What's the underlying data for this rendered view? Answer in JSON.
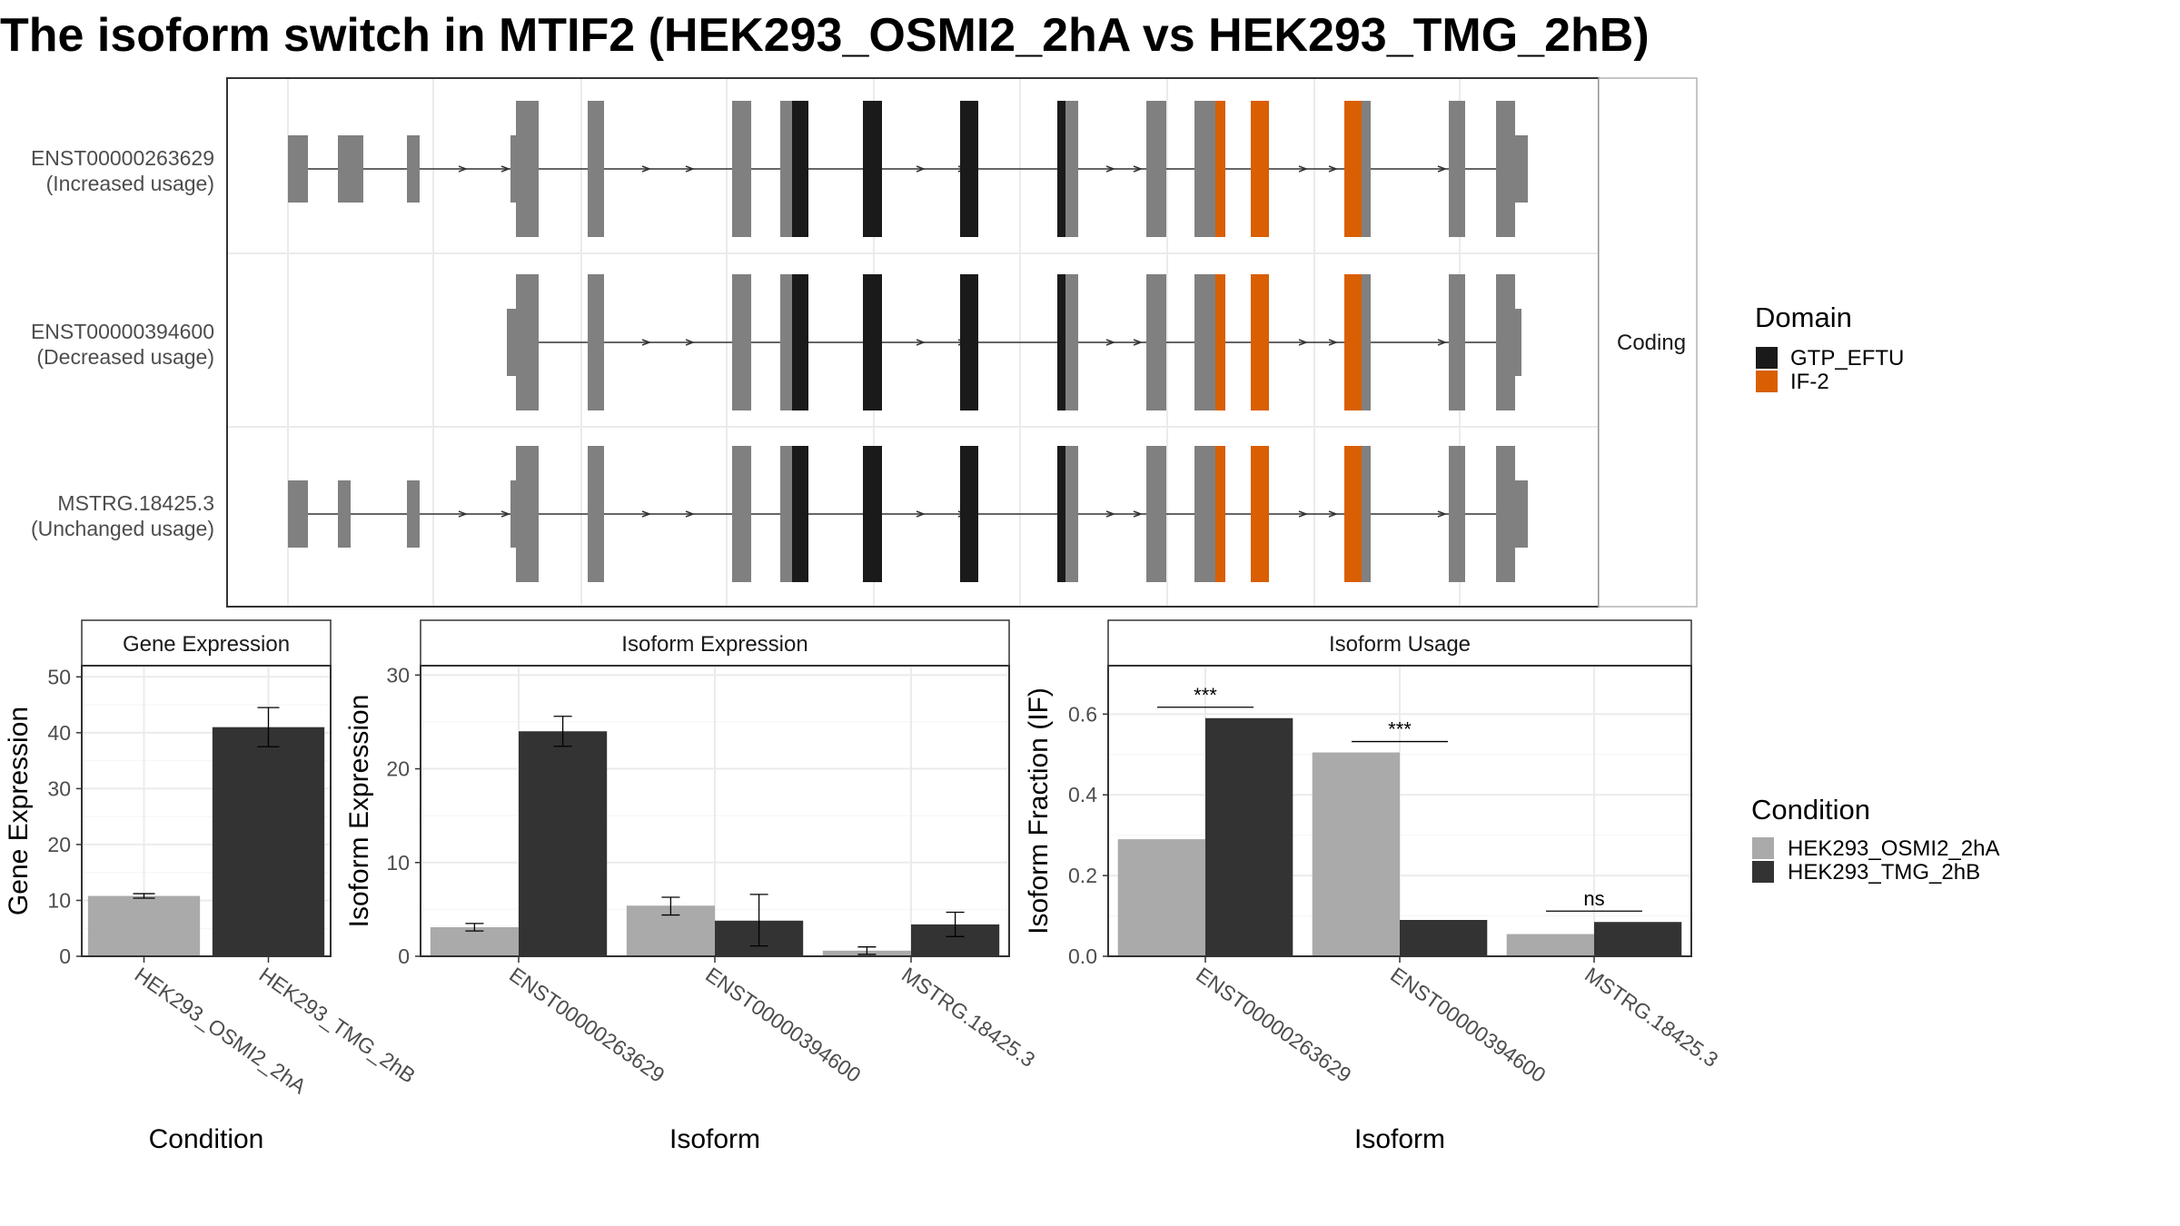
{
  "title": "The isoform switch in MTIF2 (HEK293_OSMI2_2hA vs HEK293_TMG_2hB)",
  "colors": {
    "exon": "#808080",
    "gtp_eftu": "#1a1a1a",
    "if2": "#d95f02",
    "cond_a": "#aaaaaa",
    "cond_b": "#333333",
    "strip_bg": "#ffffff",
    "grid": "#ebebeb"
  },
  "structure": {
    "facet_label": "Coding",
    "transcripts": [
      {
        "id": "ENST00000263629",
        "note": "(Increased usage)",
        "first_exons": "long"
      },
      {
        "id": "ENST00000394600",
        "note": "(Decreased usage)",
        "first_exons": "none"
      },
      {
        "id": "MSTRG.18425.3",
        "note": "(Unchanged usage)",
        "first_exons": "short"
      }
    ]
  },
  "legend_domain": {
    "title": "Domain",
    "items": [
      {
        "label": "GTP_EFTU",
        "color": "#1a1a1a"
      },
      {
        "label": "IF-2",
        "color": "#d95f02"
      }
    ]
  },
  "legend_condition": {
    "title": "Condition",
    "items": [
      {
        "label": "HEK293_OSMI2_2hA",
        "color": "#aaaaaa"
      },
      {
        "label": "HEK293_TMG_2hB",
        "color": "#333333"
      }
    ]
  },
  "chart_data": [
    {
      "type": "bar",
      "title": "Gene Expression",
      "xlabel": "Condition",
      "ylabel": "Gene Expression",
      "categories": [
        "HEK293_OSMI2_2hA",
        "HEK293_TMG_2hB"
      ],
      "values": [
        10.8,
        41
      ],
      "errors": [
        [
          10.4,
          11.2
        ],
        [
          37.5,
          44.5
        ]
      ],
      "ylim": [
        0,
        52
      ],
      "yticks": [
        0,
        10,
        20,
        30,
        40,
        50
      ]
    },
    {
      "type": "bar",
      "title": "Isoform Expression",
      "xlabel": "Isoform",
      "ylabel": "Isoform Expression",
      "categories": [
        "ENST00000263629",
        "ENST00000394600",
        "MSTRG.18425.3"
      ],
      "series": [
        {
          "name": "HEK293_OSMI2_2hA",
          "values": [
            3.1,
            5.4,
            0.6
          ],
          "errors": [
            [
              2.7,
              3.5
            ],
            [
              4.4,
              6.3
            ],
            [
              0.2,
              1.0
            ]
          ]
        },
        {
          "name": "HEK293_TMG_2hB",
          "values": [
            24,
            3.8,
            3.4
          ],
          "errors": [
            [
              22.4,
              25.6
            ],
            [
              1.1,
              6.6
            ],
            [
              2.1,
              4.7
            ]
          ]
        }
      ],
      "ylim": [
        0,
        31
      ],
      "yticks": [
        0,
        10,
        20,
        30
      ]
    },
    {
      "type": "bar",
      "title": "Isoform Usage",
      "xlabel": "Isoform",
      "ylabel": "Isoform Fraction (IF)",
      "categories": [
        "ENST00000263629",
        "ENST00000394600",
        "MSTRG.18425.3"
      ],
      "series": [
        {
          "name": "HEK293_OSMI2_2hA",
          "values": [
            0.29,
            0.505,
            0.055
          ]
        },
        {
          "name": "HEK293_TMG_2hB",
          "values": [
            0.59,
            0.09,
            0.085
          ]
        }
      ],
      "significance": [
        "***",
        "***",
        "ns"
      ],
      "ylim": [
        0,
        0.72
      ],
      "yticks": [
        0.0,
        0.2,
        0.4,
        0.6
      ]
    }
  ]
}
